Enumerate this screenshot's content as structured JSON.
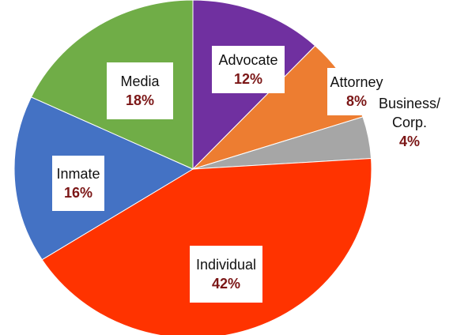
{
  "chart_data": {
    "type": "pie",
    "title": "",
    "start_angle_deg": 0,
    "direction": "clockwise",
    "slices": [
      {
        "name": "Advocate",
        "value": 12,
        "label": "12%",
        "color": "#7030a0"
      },
      {
        "name": "Attorney",
        "value": 8,
        "label": "8%",
        "color": "#ed7d31"
      },
      {
        "name": "Business/ Corp.",
        "name_lines": [
          "Business/",
          "Corp."
        ],
        "value": 4,
        "label": "4%",
        "color": "#a6a6a6"
      },
      {
        "name": "Individual",
        "value": 42,
        "label": "42%",
        "color": "#ff3300"
      },
      {
        "name": "Inmate",
        "value": 16,
        "label": "16%",
        "color": "#4472c4"
      },
      {
        "name": "Media",
        "value": 18,
        "label": "18%",
        "color": "#70ad47"
      }
    ]
  }
}
